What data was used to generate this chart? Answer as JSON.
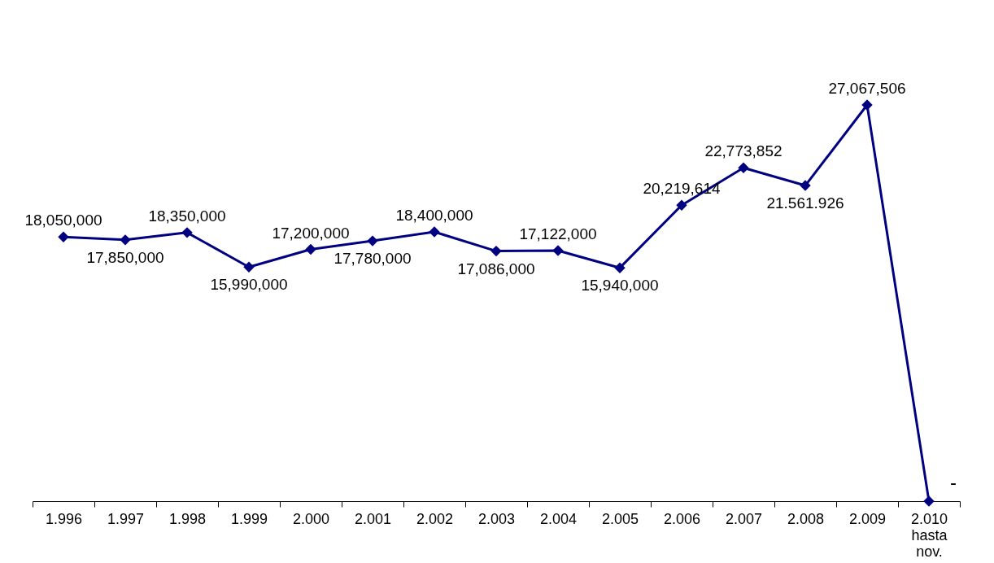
{
  "chart_data": {
    "type": "line",
    "categories": [
      "1.996",
      "1.997",
      "1.998",
      "1.999",
      "2.000",
      "2.001",
      "2.002",
      "2.003",
      "2.004",
      "2.005",
      "2.006",
      "2.007",
      "2.008",
      "2.009",
      "2.010\nhasta\nnov."
    ],
    "series": [
      {
        "color": "#000080",
        "values": [
          18050000,
          17850000,
          18350000,
          15990000,
          17200000,
          17780000,
          18400000,
          17086000,
          17122000,
          15940000,
          20219614,
          22773852,
          21561926,
          27067506,
          0
        ],
        "value_labels": [
          "18,050,000",
          "17,850,000",
          "18,350,000",
          "15,990,000",
          "17,200,000",
          "17,780,000",
          "18,400,000",
          "17,086,000",
          "17,122,000",
          "15,940,000",
          "20,219,614",
          "22,773,852",
          "21.561.926",
          "27,067,506",
          "-"
        ]
      }
    ],
    "marker": "diamond",
    "line_style": "solid",
    "grid": false,
    "tick_labels": "x"
  }
}
